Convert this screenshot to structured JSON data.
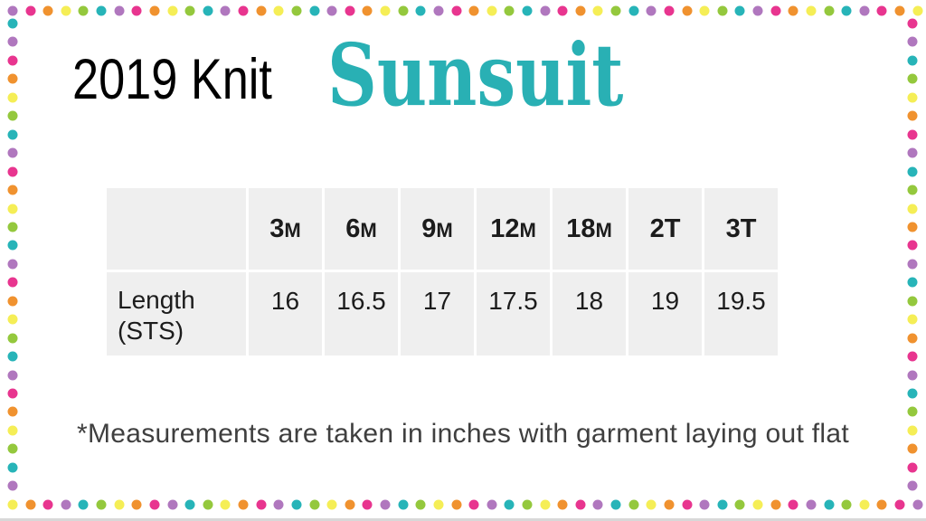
{
  "header": {
    "title_prefix": "2019 Knit",
    "product_name": "Sunsuit",
    "product_name_color": "#29b0b4",
    "title_color": "#000000"
  },
  "table": {
    "corner_label": "",
    "columns": [
      "3M",
      "6M",
      "9M",
      "12M",
      "18M",
      "2T",
      "3T"
    ],
    "rows": [
      {
        "label": "Length (STS)",
        "values": [
          "16",
          "16.5",
          "17",
          "17.5",
          "18",
          "19",
          "19.5"
        ]
      }
    ],
    "cell_background": "#efefef",
    "gridline_color": "#ffffff"
  },
  "footnote": {
    "text": "*Measurements are taken in inches with garment laying out flat"
  },
  "border": {
    "dot_colors": {
      "purple": "#b077be",
      "pink": "#e8358f",
      "orange": "#f0922f",
      "yellow": "#f5ee56",
      "green": "#94c83d",
      "teal": "#27b4b8"
    },
    "sequences": {
      "top": [
        "purple",
        "pink",
        "orange",
        "yellow",
        "green",
        "teal"
      ],
      "bottom": [
        "yellow",
        "orange",
        "pink",
        "purple",
        "teal",
        "green"
      ],
      "left": [
        "teal",
        "purple",
        "pink",
        "orange",
        "yellow",
        "green"
      ],
      "right": [
        "pink",
        "purple",
        "teal",
        "green",
        "yellow",
        "orange"
      ]
    }
  },
  "chart_data": {
    "type": "table",
    "title": "2019 Knit Sunsuit",
    "categories": [
      "3M",
      "6M",
      "9M",
      "12M",
      "18M",
      "2T",
      "3T"
    ],
    "series": [
      {
        "name": "Length (STS)",
        "values": [
          16,
          16.5,
          17,
          17.5,
          18,
          19,
          19.5
        ]
      }
    ],
    "units": "inches",
    "note": "*Measurements are taken in inches with garment laying out flat"
  }
}
